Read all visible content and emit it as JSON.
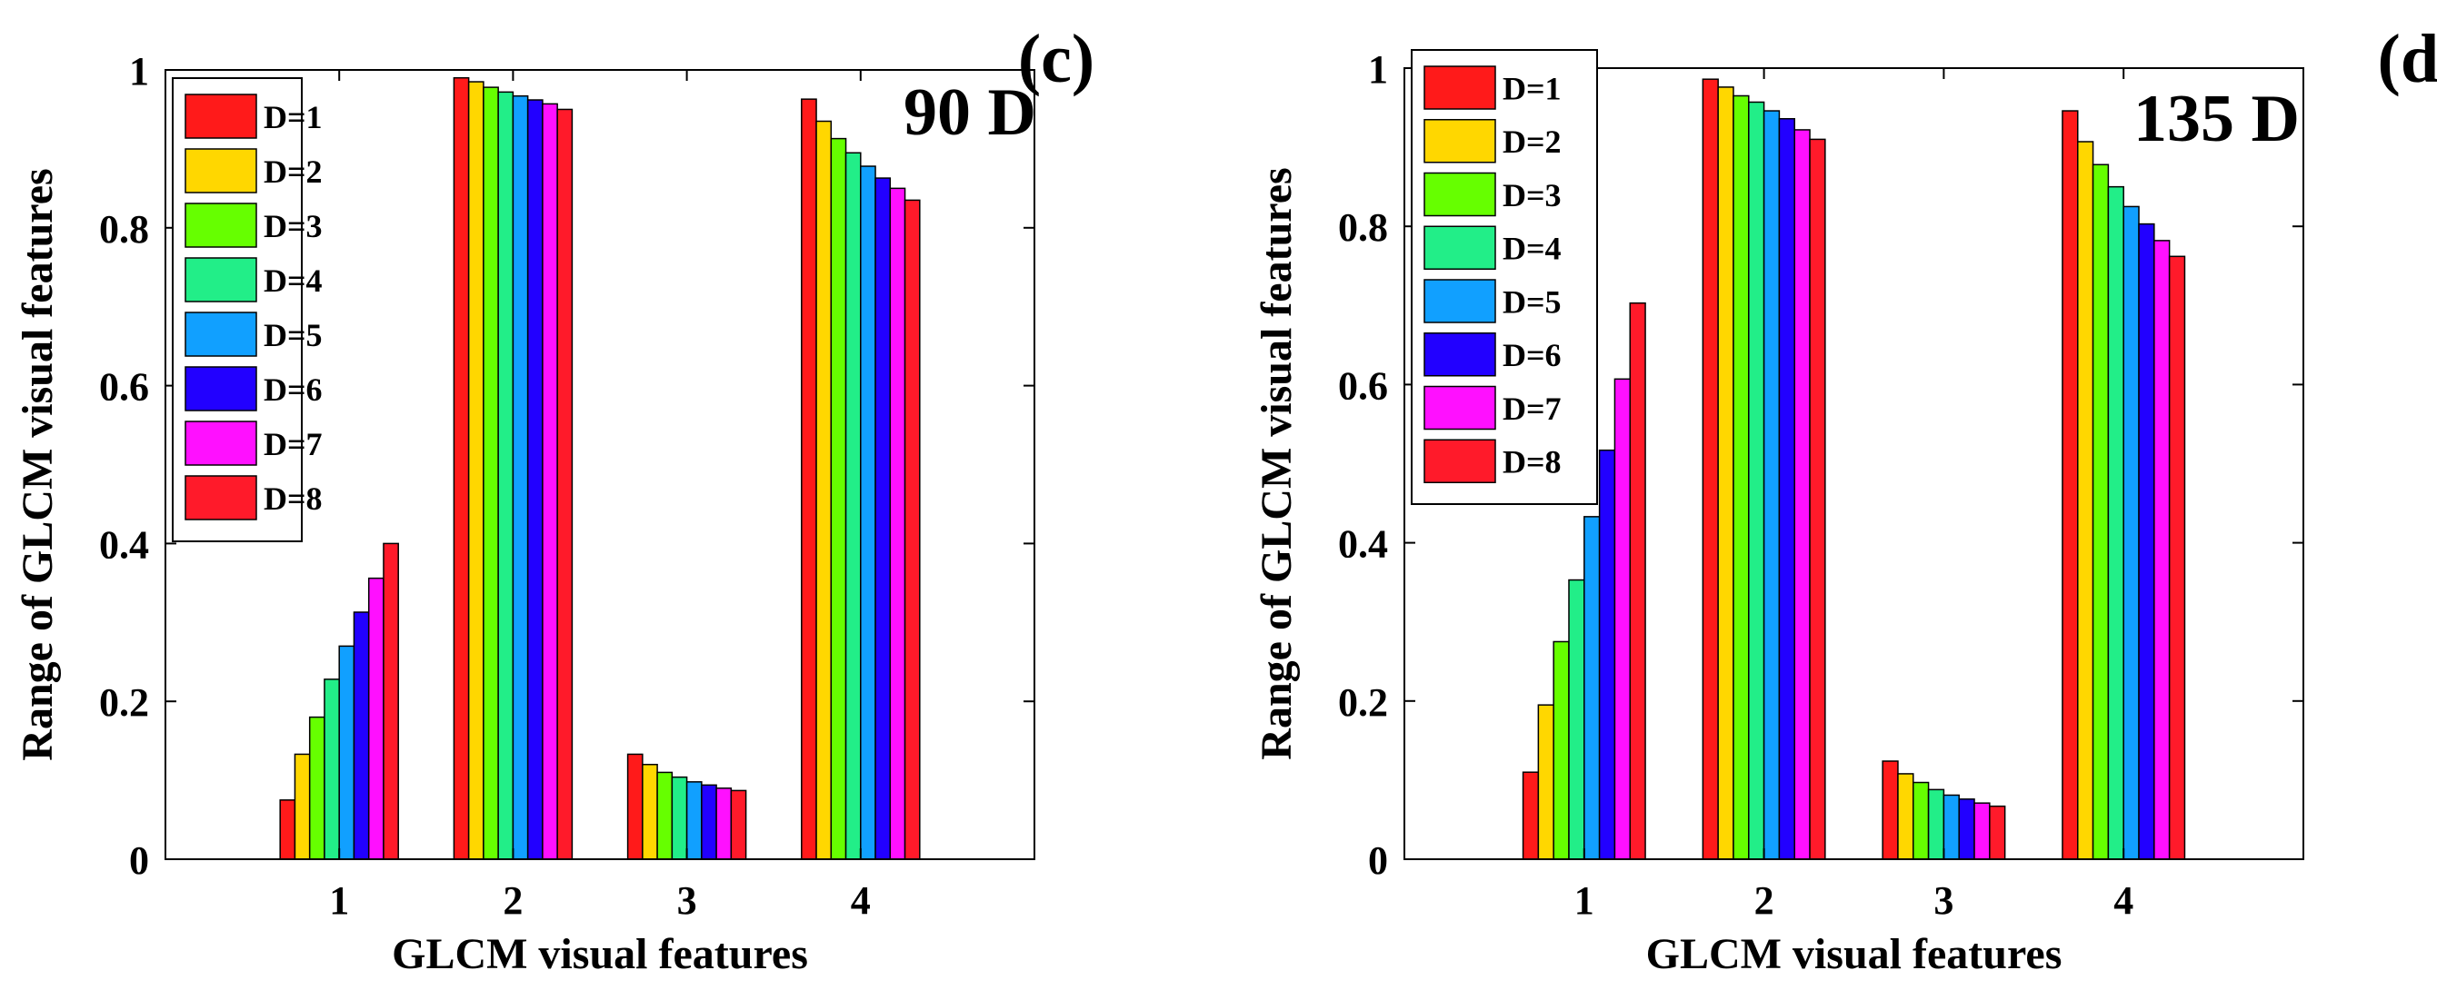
{
  "colors": [
    "#ff1a1a",
    "#ffd700",
    "#66ff00",
    "#22ee88",
    "#11a0ff",
    "#2200ff",
    "#ff10ff",
    "#ff1a2a"
  ],
  "chart_data": [
    {
      "type": "bar",
      "panel_label": "(c)",
      "annotation": "90 D",
      "xlabel": "GLCM visual features",
      "ylabel": "Range of GLCM visual features",
      "categories": [
        "1",
        "2",
        "3",
        "4"
      ],
      "ylim": [
        0,
        1
      ],
      "yticks": [
        "0",
        "0.2",
        "0.4",
        "0.6",
        "0.8",
        "1"
      ],
      "legend_position": "top-left",
      "series": [
        {
          "name": "D=1",
          "values": [
            0.075,
            0.99,
            0.133,
            0.963
          ]
        },
        {
          "name": "D=2",
          "values": [
            0.133,
            0.985,
            0.12,
            0.935
          ]
        },
        {
          "name": "D=3",
          "values": [
            0.18,
            0.978,
            0.11,
            0.913
          ]
        },
        {
          "name": "D=4",
          "values": [
            0.228,
            0.972,
            0.104,
            0.895
          ]
        },
        {
          "name": "D=5",
          "values": [
            0.27,
            0.967,
            0.098,
            0.878
          ]
        },
        {
          "name": "D=6",
          "values": [
            0.313,
            0.962,
            0.094,
            0.863
          ]
        },
        {
          "name": "D=7",
          "values": [
            0.356,
            0.957,
            0.09,
            0.85
          ]
        },
        {
          "name": "D=8",
          "values": [
            0.4,
            0.95,
            0.087,
            0.835
          ]
        }
      ]
    },
    {
      "type": "bar",
      "panel_label": "(d)",
      "annotation": "135 D",
      "xlabel": "GLCM visual features",
      "ylabel": "Range of GLCM visual features",
      "categories": [
        "1",
        "2",
        "3",
        "4"
      ],
      "ylim": [
        0,
        1
      ],
      "yticks": [
        "0",
        "0.2",
        "0.4",
        "0.6",
        "0.8",
        "1"
      ],
      "legend_position": "top-left",
      "series": [
        {
          "name": "D=1",
          "values": [
            0.11,
            0.986,
            0.124,
            0.946
          ]
        },
        {
          "name": "D=2",
          "values": [
            0.195,
            0.976,
            0.108,
            0.907
          ]
        },
        {
          "name": "D=3",
          "values": [
            0.275,
            0.965,
            0.097,
            0.878
          ]
        },
        {
          "name": "D=4",
          "values": [
            0.353,
            0.957,
            0.088,
            0.85
          ]
        },
        {
          "name": "D=5",
          "values": [
            0.433,
            0.946,
            0.081,
            0.825
          ]
        },
        {
          "name": "D=6",
          "values": [
            0.517,
            0.936,
            0.076,
            0.803
          ]
        },
        {
          "name": "D=7",
          "values": [
            0.607,
            0.922,
            0.071,
            0.782
          ]
        },
        {
          "name": "D=8",
          "values": [
            0.703,
            0.91,
            0.067,
            0.762
          ]
        }
      ]
    }
  ]
}
